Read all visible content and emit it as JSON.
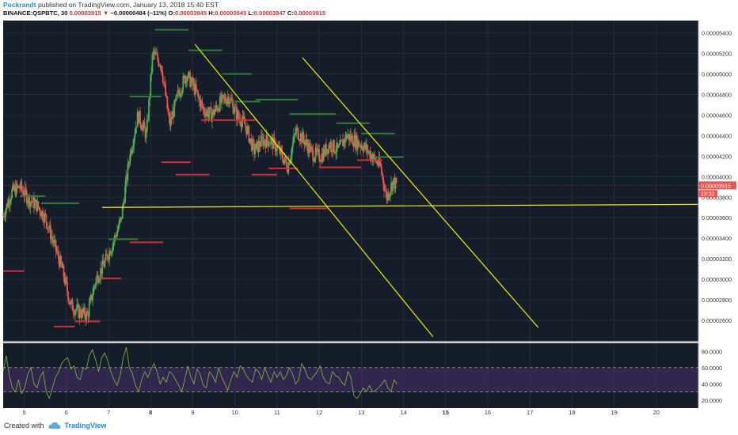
{
  "header": {
    "author": "Pockrandt",
    "published_on": "published on TradingView.com, January 13, 2018 15:40 EST",
    "symbol": "BINANCE:QSPBTC, 30",
    "last": "0.00003915",
    "change_arrow": "▼",
    "change": "−0.00000484 (−11%)",
    "o_label": "O:",
    "o": "0.00003945",
    "h_label": "H:",
    "h": "0.00003945",
    "l_label": "L:",
    "l": "0.00003847",
    "c_label": "C:",
    "c": "0.00003915"
  },
  "footer": {
    "created_with": "Created with",
    "brand": "TradingView",
    "logo_icon": "tradingview-cloud-icon"
  },
  "chart_data": {
    "type": "candlestick",
    "symbol": "BINANCE:QSPBTC",
    "interval": "30",
    "colors": {
      "background": "#161d2a",
      "up": "#4caf50",
      "down": "#ef5350",
      "trendline": "#f0f000",
      "rsi_line": "#7cbf3a",
      "rsi_band": "#4a2d6e",
      "support": "#d32f2f",
      "resistance": "#2e7d32"
    },
    "grid": true,
    "price_axis": {
      "position": "right",
      "range": [
        2.4e-05,
        5.52e-05
      ],
      "ticks": [
        "0.00005400",
        "0.00005200",
        "0.00005000",
        "0.00004800",
        "0.00004600",
        "0.00004400",
        "0.00004200",
        "0.00004000",
        "0.00003800",
        "0.00003600",
        "0.00003400",
        "0.00003200",
        "0.00003000",
        "0.00002800",
        "0.00002600",
        "0.00002400"
      ],
      "last_price_label": "0.00003915",
      "countdown_label": "19:32"
    },
    "time_axis": {
      "range": [
        4.5,
        21.0
      ],
      "ticks": [
        "5",
        "6",
        "7",
        "8",
        "9",
        "10",
        "11",
        "12",
        "13",
        "14",
        "15",
        "16",
        "17",
        "18",
        "19",
        "20"
      ],
      "bold_ticks": [
        "8",
        "15"
      ]
    },
    "close_path": [
      [
        4.5,
        3.62e-05
      ],
      [
        4.7,
        3.85e-05
      ],
      [
        4.9,
        3.9e-05
      ],
      [
        5.1,
        3.78e-05
      ],
      [
        5.3,
        3.72e-05
      ],
      [
        5.5,
        3.6e-05
      ],
      [
        5.7,
        3.35e-05
      ],
      [
        5.9,
        3.1e-05
      ],
      [
        6.1,
        2.75e-05
      ],
      [
        6.3,
        2.68e-05
      ],
      [
        6.5,
        2.65e-05
      ],
      [
        6.7,
        3e-05
      ],
      [
        6.9,
        3.15e-05
      ],
      [
        7.1,
        3.35e-05
      ],
      [
        7.3,
        3.58e-05
      ],
      [
        7.5,
        4.2e-05
      ],
      [
        7.7,
        4.6e-05
      ],
      [
        7.9,
        4.4e-05
      ],
      [
        8.05,
        5.2e-05
      ],
      [
        8.25,
        5.1e-05
      ],
      [
        8.45,
        4.5e-05
      ],
      [
        8.65,
        4.8e-05
      ],
      [
        8.85,
        5e-05
      ],
      [
        9.05,
        4.85e-05
      ],
      [
        9.25,
        4.65e-05
      ],
      [
        9.45,
        4.6e-05
      ],
      [
        9.65,
        4.72e-05
      ],
      [
        9.85,
        4.78e-05
      ],
      [
        10.05,
        4.6e-05
      ],
      [
        10.25,
        4.5e-05
      ],
      [
        10.45,
        4.25e-05
      ],
      [
        10.65,
        4.35e-05
      ],
      [
        10.85,
        4.35e-05
      ],
      [
        11.05,
        4.25e-05
      ],
      [
        11.25,
        4.1e-05
      ],
      [
        11.45,
        4.45e-05
      ],
      [
        11.65,
        4.35e-05
      ],
      [
        11.85,
        4.22e-05
      ],
      [
        12.05,
        4.2e-05
      ],
      [
        12.25,
        4.32e-05
      ],
      [
        12.45,
        4.25e-05
      ],
      [
        12.65,
        4.4e-05
      ],
      [
        12.85,
        4.35e-05
      ],
      [
        13.05,
        4.3e-05
      ],
      [
        13.25,
        4.2e-05
      ],
      [
        13.45,
        4.1e-05
      ],
      [
        13.6,
        3.8e-05
      ],
      [
        13.75,
        3.95e-05
      ],
      [
        13.85,
        3.915e-05
      ]
    ],
    "support_levels": [
      {
        "x": [
          4.5,
          5.0
        ],
        "y": 3.08e-05
      },
      {
        "x": [
          6.8,
          7.3
        ],
        "y": 3.01e-05
      },
      {
        "x": [
          6.2,
          6.8
        ],
        "y": 2.59e-05
      },
      {
        "x": [
          5.7,
          6.2
        ],
        "y": 2.54e-05
      },
      {
        "x": [
          7.5,
          8.3
        ],
        "y": 3.36e-05
      },
      {
        "x": [
          8.25,
          8.95
        ],
        "y": 4.14e-05
      },
      {
        "x": [
          8.6,
          9.4
        ],
        "y": 4.02e-05
      },
      {
        "x": [
          9.2,
          10.5
        ],
        "y": 4.55e-05
      },
      {
        "x": [
          10.4,
          11.0
        ],
        "y": 4.02e-05
      },
      {
        "x": [
          10.8,
          11.5
        ],
        "y": 4.08e-05
      },
      {
        "x": [
          11.3,
          12.2
        ],
        "y": 3.69e-05
      },
      {
        "x": [
          12.0,
          13.0
        ],
        "y": 4.09e-05
      },
      {
        "x": [
          12.9,
          13.5
        ],
        "y": 4.16e-05
      }
    ],
    "resistance_levels": [
      {
        "x": [
          4.9,
          5.5
        ],
        "y": 3.81e-05
      },
      {
        "x": [
          5.4,
          6.3
        ],
        "y": 3.74e-05
      },
      {
        "x": [
          7.0,
          7.7
        ],
        "y": 3.39e-05
      },
      {
        "x": [
          7.5,
          8.25
        ],
        "y": 4.78e-05
      },
      {
        "x": [
          8.1,
          8.9
        ],
        "y": 5.43e-05
      },
      {
        "x": [
          8.9,
          9.7
        ],
        "y": 5.23e-05
      },
      {
        "x": [
          9.7,
          10.4
        ],
        "y": 5e-05
      },
      {
        "x": [
          9.9,
          10.6
        ],
        "y": 4.73e-05
      },
      {
        "x": [
          10.5,
          11.5
        ],
        "y": 4.75e-05
      },
      {
        "x": [
          11.3,
          12.4
        ],
        "y": 4.61e-05
      },
      {
        "x": [
          12.4,
          13.2
        ],
        "y": 4.52e-05
      },
      {
        "x": [
          13.0,
          13.8
        ],
        "y": 4.42e-05
      },
      {
        "x": [
          13.3,
          14.0
        ],
        "y": 4.19e-05
      }
    ],
    "trendlines": [
      {
        "from": [
          9.05,
          5.29e-05
        ],
        "to": [
          14.7,
          2.44e-05
        ]
      },
      {
        "from": [
          11.6,
          5.16e-05
        ],
        "to": [
          17.2,
          2.53e-05
        ]
      },
      {
        "from": [
          6.85,
          3.7e-05
        ],
        "to": [
          21.0,
          3.73e-05
        ]
      }
    ],
    "rsi": {
      "range": [
        10,
        90
      ],
      "ticks": [
        "80.0000",
        "60.0000",
        "40.0000",
        "20.0000"
      ],
      "upper_band": 60,
      "lower_band": 30,
      "values": [
        55,
        75,
        50,
        35,
        30,
        45,
        28,
        35,
        52,
        60,
        40,
        35,
        48,
        55,
        30,
        22,
        35,
        48,
        55,
        65,
        70,
        72,
        58,
        62,
        48,
        45,
        60,
        58,
        75,
        82,
        70,
        55,
        72,
        78,
        68,
        55,
        45,
        38,
        50,
        72,
        85,
        60,
        52,
        38,
        30,
        45,
        55,
        48,
        58,
        65,
        55,
        40,
        48,
        42,
        55,
        52,
        45,
        38,
        30,
        45,
        62,
        48,
        40,
        58,
        52,
        38,
        35,
        55,
        50,
        42,
        60,
        48,
        40,
        32,
        45,
        55,
        48,
        62,
        58,
        50,
        45,
        42,
        58,
        55,
        45,
        60,
        50,
        42,
        55,
        48,
        55,
        45,
        50,
        60,
        52,
        40,
        45,
        65,
        58,
        48,
        45,
        50,
        55,
        62,
        48,
        42,
        40,
        55,
        50,
        48,
        42,
        38,
        55,
        48,
        25,
        22,
        28,
        35,
        30,
        38,
        30,
        32,
        35,
        40,
        45,
        35,
        30,
        45,
        40
      ]
    }
  }
}
